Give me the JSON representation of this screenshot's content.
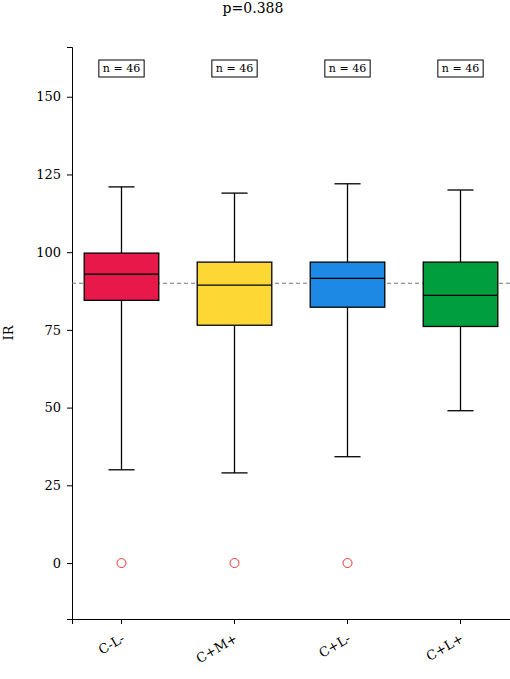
{
  "chart_data": {
    "type": "box",
    "title": "p=0.388",
    "y_label": "IR",
    "categories": [
      "C-L-",
      "C+M+",
      "C+L-",
      "C+L+"
    ],
    "colors": [
      "#e8194a",
      "#fdd835",
      "#1e88e5",
      "#009e3d"
    ],
    "boxes": [
      {
        "whisker_low": 30,
        "q1": 84.5,
        "median": 92.9,
        "q3": 99.7,
        "whisker_high": 121,
        "outliers": [
          0
        ]
      },
      {
        "whisker_low": 29,
        "q1": 76.5,
        "median": 89.4,
        "q3": 96.8,
        "whisker_high": 119,
        "outliers": [
          0
        ]
      },
      {
        "whisker_low": 34.2,
        "q1": 82.3,
        "median": 91.6,
        "q3": 96.8,
        "whisker_high": 122,
        "outliers": [
          0
        ]
      },
      {
        "whisker_low": 49,
        "q1": 76.1,
        "median": 86.1,
        "q3": 96.8,
        "whisker_high": 120,
        "outliers": []
      }
    ],
    "n_labels": [
      "n = 46",
      "n = 46",
      "n = 46",
      "n = 46"
    ],
    "reference_line": 90,
    "ylim": [
      -18,
      166
    ],
    "yticks": [
      0,
      25,
      50,
      75,
      100,
      125,
      150
    ],
    "grid": false
  }
}
